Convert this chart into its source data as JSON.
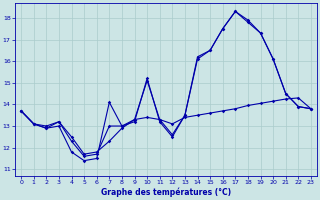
{
  "xlabel": "Graphe des températures (°C)",
  "bg_color": "#cce5e5",
  "grid_color": "#aacccc",
  "line_color": "#0000aa",
  "ylim": [
    10.7,
    18.7
  ],
  "xlim": [
    -0.5,
    23.5
  ],
  "yticks": [
    11,
    12,
    13,
    14,
    15,
    16,
    17,
    18
  ],
  "xticks": [
    0,
    1,
    2,
    3,
    4,
    5,
    6,
    7,
    8,
    9,
    10,
    11,
    12,
    13,
    14,
    15,
    16,
    17,
    18,
    19,
    20,
    21,
    22,
    23
  ],
  "line1_y": [
    13.7,
    13.1,
    12.9,
    13.0,
    11.8,
    11.4,
    11.5,
    14.1,
    13.0,
    13.2,
    15.2,
    13.2,
    12.5,
    13.5,
    16.2,
    16.5,
    17.5,
    18.3,
    17.8,
    17.3,
    16.1,
    14.5,
    13.9,
    13.8
  ],
  "line2_y": [
    13.7,
    13.1,
    12.9,
    13.2,
    12.3,
    11.6,
    11.7,
    13.0,
    13.0,
    13.3,
    15.1,
    13.3,
    12.6,
    13.5,
    16.1,
    16.5,
    17.5,
    18.3,
    17.9,
    17.3,
    16.1,
    14.5,
    13.9,
    13.8
  ],
  "line3_y": [
    13.7,
    13.1,
    13.0,
    13.2,
    12.5,
    11.7,
    11.8,
    12.3,
    12.9,
    13.3,
    13.4,
    13.3,
    13.1,
    13.4,
    13.5,
    13.6,
    13.7,
    13.8,
    13.95,
    14.05,
    14.15,
    14.25,
    14.3,
    13.8
  ]
}
